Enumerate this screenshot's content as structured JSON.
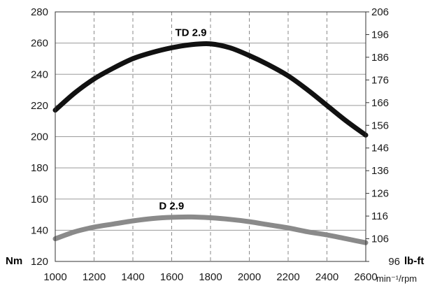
{
  "chart_data": {
    "type": "line",
    "x_unit": "min⁻¹/rpm",
    "y_left_unit": "Nm",
    "y_right_unit": "lb-ft",
    "xlim": [
      1000,
      2600
    ],
    "ylim": [
      120,
      280
    ],
    "y_right_lim": [
      96,
      206
    ],
    "x_ticks": [
      1000,
      1200,
      1400,
      1600,
      1800,
      2000,
      2200,
      2400,
      2600
    ],
    "y_ticks": [
      120,
      140,
      160,
      180,
      200,
      220,
      240,
      260,
      280
    ],
    "y_right_ticks": [
      96,
      106,
      116,
      126,
      136,
      146,
      156,
      166,
      176,
      186,
      196,
      206
    ],
    "grid": {
      "x": "dashed",
      "y": "solid"
    },
    "series": [
      {
        "name": "TD 2.9",
        "color": "#111111",
        "x": [
          1000,
          1100,
          1200,
          1300,
          1400,
          1500,
          1600,
          1700,
          1800,
          1900,
          2000,
          2100,
          2200,
          2300,
          2400,
          2500,
          2600
        ],
        "y": [
          217,
          228,
          237,
          244,
          250,
          254,
          257,
          259,
          259.5,
          257,
          252,
          246,
          239,
          230,
          220,
          210,
          201
        ]
      },
      {
        "name": "D 2.9",
        "color": "#8a8a8a",
        "x": [
          1000,
          1100,
          1200,
          1300,
          1400,
          1500,
          1600,
          1700,
          1800,
          1900,
          2000,
          2100,
          2200,
          2300,
          2400,
          2500,
          2600
        ],
        "y": [
          134.5,
          139,
          142,
          144,
          146,
          147.5,
          148.3,
          148.5,
          148,
          147,
          145.5,
          143.5,
          141.5,
          139,
          137,
          134.5,
          132
        ]
      }
    ]
  }
}
